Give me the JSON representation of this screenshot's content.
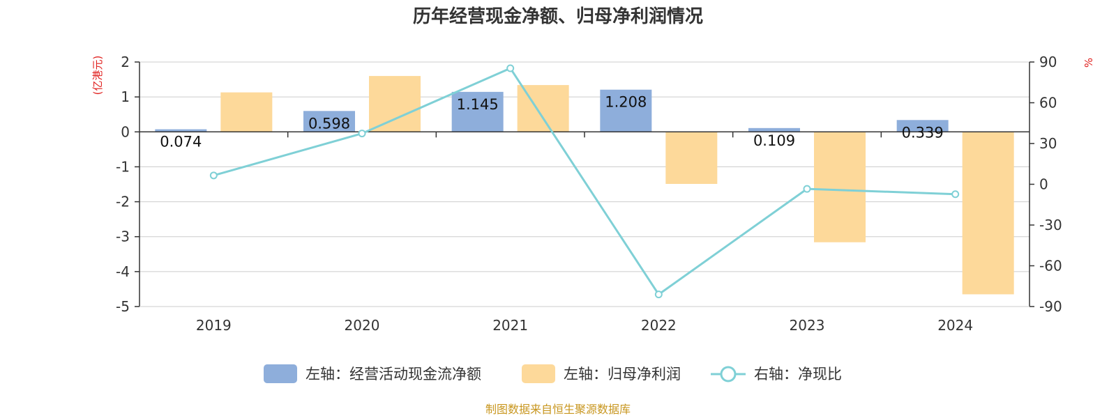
{
  "chart_data": {
    "type": "bar+line",
    "title": "历年经营现金净额、归母净利润情况",
    "left_axis_unit": "(亿港元)",
    "right_axis_unit": "%",
    "categories": [
      "2019",
      "2020",
      "2021",
      "2022",
      "2023",
      "2024"
    ],
    "left_ylim": [
      -5,
      2
    ],
    "left_ticks": [
      "2",
      "1",
      "0",
      "-1",
      "-2",
      "-3",
      "-4",
      "-5"
    ],
    "right_ylim": [
      -90,
      90
    ],
    "right_ticks": [
      "90",
      "60",
      "30",
      "0",
      "-30",
      "-60",
      "-90"
    ],
    "series": [
      {
        "name": "左轴：经营活动现金流净额",
        "type": "bar",
        "axis": "left",
        "color": "#8eaedb",
        "values": [
          0.074,
          0.598,
          1.145,
          1.208,
          0.109,
          0.339
        ],
        "labels": [
          "0.074",
          "0.598",
          "1.145",
          "1.208",
          "0.109",
          "0.339"
        ]
      },
      {
        "name": "左轴：归母净利润",
        "type": "bar",
        "axis": "left",
        "color": "#fdd99a",
        "values": [
          1.13,
          1.6,
          1.34,
          -1.49,
          -3.16,
          -4.65
        ]
      },
      {
        "name": "右轴：净现比",
        "type": "line",
        "axis": "right",
        "color": "#7fd0d6",
        "values": [
          6.5,
          37.4,
          85.4,
          -81.1,
          -3.4,
          -7.3
        ]
      }
    ],
    "grid": true,
    "legend_position": "bottom"
  },
  "source_text": "制图数据来自恒生聚源数据库"
}
